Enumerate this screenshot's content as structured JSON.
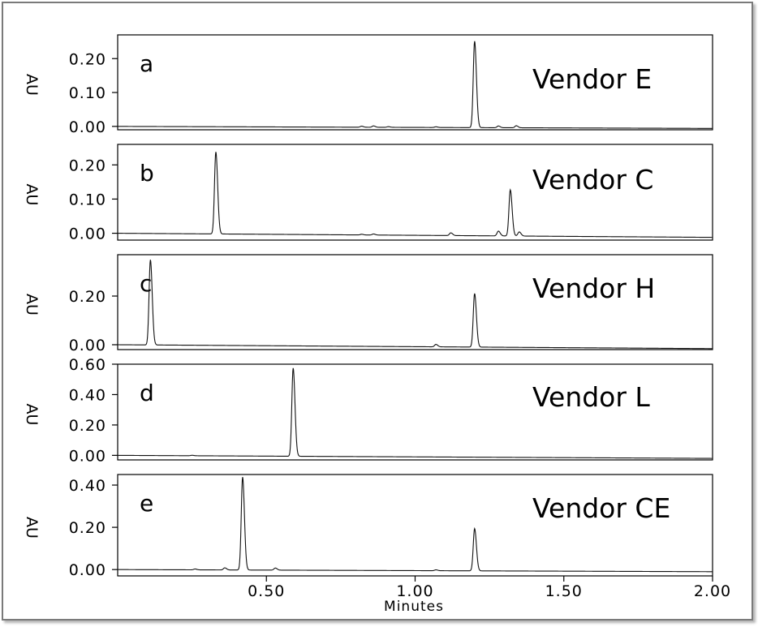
{
  "chart_data": [
    {
      "type": "line",
      "panel_label": "a",
      "annotation": "Vendor E",
      "ylabel": "AU",
      "ylim": [
        -0.01,
        0.27
      ],
      "yticks": [
        0.0,
        0.1,
        0.2
      ],
      "ytick_labels": [
        "0.00",
        "0.10",
        "0.20"
      ],
      "xlim": [
        0.0,
        2.0
      ],
      "baseline": 0.0,
      "baseline_drift": -0.003,
      "peaks": [
        {
          "x": 0.82,
          "y": 0.003
        },
        {
          "x": 0.86,
          "y": 0.004
        },
        {
          "x": 0.91,
          "y": 0.002
        },
        {
          "x": 1.07,
          "y": 0.002
        },
        {
          "x": 1.2,
          "y": 0.255
        },
        {
          "x": 1.28,
          "y": 0.005
        },
        {
          "x": 1.34,
          "y": 0.006
        }
      ]
    },
    {
      "type": "line",
      "panel_label": "b",
      "annotation": "Vendor C",
      "ylabel": "AU",
      "ylim": [
        -0.02,
        0.26
      ],
      "yticks": [
        0.0,
        0.1,
        0.2
      ],
      "ytick_labels": [
        "0.00",
        "0.10",
        "0.20"
      ],
      "xlim": [
        0.0,
        2.0
      ],
      "baseline": 0.0,
      "baseline_drift": -0.006,
      "peaks": [
        {
          "x": 0.33,
          "y": 0.24
        },
        {
          "x": 0.82,
          "y": 0.002
        },
        {
          "x": 0.86,
          "y": 0.003
        },
        {
          "x": 1.12,
          "y": 0.008
        },
        {
          "x": 1.28,
          "y": 0.014
        },
        {
          "x": 1.32,
          "y": 0.135
        },
        {
          "x": 1.35,
          "y": 0.012
        }
      ]
    },
    {
      "type": "line",
      "panel_label": "c",
      "annotation": "Vendor H",
      "ylabel": "AU",
      "ylim": [
        -0.02,
        0.37
      ],
      "yticks": [
        0.0,
        0.2
      ],
      "ytick_labels": [
        "0.00",
        "0.20"
      ],
      "xlim": [
        0.0,
        2.0
      ],
      "baseline": 0.0,
      "baseline_drift": -0.008,
      "peaks": [
        {
          "x": 0.11,
          "y": 0.35
        },
        {
          "x": 1.07,
          "y": 0.01
        },
        {
          "x": 1.2,
          "y": 0.22
        }
      ]
    },
    {
      "type": "line",
      "panel_label": "d",
      "annotation": "Vendor L",
      "ylabel": "AU",
      "ylim": [
        -0.03,
        0.6
      ],
      "yticks": [
        0.0,
        0.2,
        0.4,
        0.6
      ],
      "ytick_labels": [
        "0.00",
        "0.20",
        "0.40",
        "0.60"
      ],
      "xlim": [
        0.0,
        2.0
      ],
      "baseline": 0.0,
      "baseline_drift": -0.01,
      "peaks": [
        {
          "x": 0.25,
          "y": 0.003
        },
        {
          "x": 0.59,
          "y": 0.58
        }
      ]
    },
    {
      "type": "line",
      "panel_label": "e",
      "annotation": "Vendor CE",
      "ylabel": "AU",
      "ylim": [
        -0.03,
        0.45
      ],
      "yticks": [
        0.0,
        0.2,
        0.4
      ],
      "ytick_labels": [
        "0.00",
        "0.20",
        "0.40"
      ],
      "xlim": [
        0.0,
        2.0
      ],
      "xticks": [
        0.5,
        1.0,
        1.5,
        2.0
      ],
      "xtick_labels": [
        "0.50",
        "1.00",
        "1.50",
        "2.00"
      ],
      "xlabel": "Minutes",
      "baseline": 0.0,
      "baseline_drift": -0.005,
      "peaks": [
        {
          "x": 0.26,
          "y": 0.004
        },
        {
          "x": 0.36,
          "y": 0.01
        },
        {
          "x": 0.42,
          "y": 0.44
        },
        {
          "x": 0.53,
          "y": 0.01
        },
        {
          "x": 1.07,
          "y": 0.004
        },
        {
          "x": 1.2,
          "y": 0.2
        }
      ]
    }
  ]
}
